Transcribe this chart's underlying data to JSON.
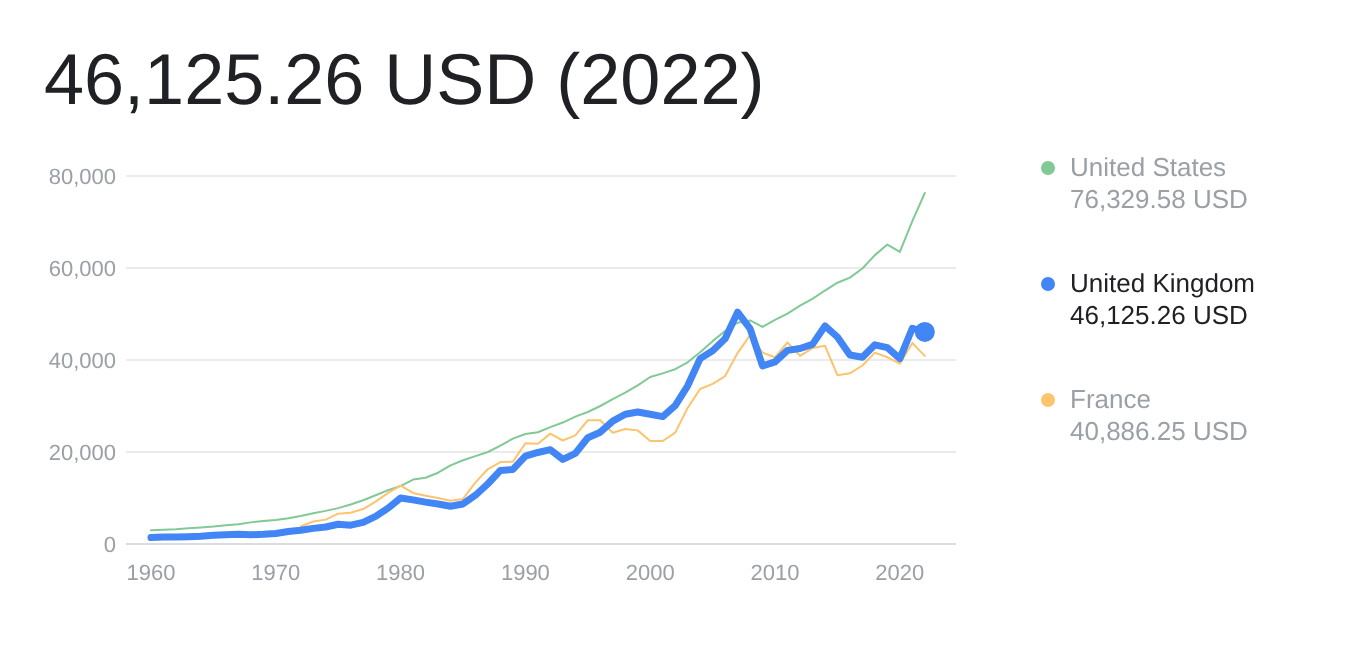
{
  "chart_data": {
    "type": "line",
    "title": "46,125.26 USD (2022)",
    "xlim": [
      1958,
      2024.5
    ],
    "xticks": [
      1960,
      1970,
      1980,
      1990,
      2000,
      2010,
      2020
    ],
    "ylim": [
      0,
      80000
    ],
    "yticks": [
      {
        "value": 0,
        "label": "0"
      },
      {
        "value": 20000,
        "label": "20,000"
      },
      {
        "value": 40000,
        "label": "40,000"
      },
      {
        "value": 60000,
        "label": "60,000"
      },
      {
        "value": 80000,
        "label": "80,000"
      }
    ],
    "grid": "y",
    "legend": "right",
    "x": [
      1960,
      1961,
      1962,
      1963,
      1964,
      1965,
      1966,
      1967,
      1968,
      1969,
      1970,
      1971,
      1972,
      1973,
      1974,
      1975,
      1976,
      1977,
      1978,
      1979,
      1980,
      1981,
      1982,
      1983,
      1984,
      1985,
      1986,
      1987,
      1988,
      1989,
      1990,
      1991,
      1992,
      1993,
      1994,
      1995,
      1996,
      1997,
      1998,
      1999,
      2000,
      2001,
      2002,
      2003,
      2004,
      2005,
      2006,
      2007,
      2008,
      2009,
      2010,
      2011,
      2012,
      2013,
      2014,
      2015,
      2016,
      2017,
      2018,
      2019,
      2020,
      2021,
      2022
    ],
    "series": [
      {
        "name": "United States",
        "color": "#81c995",
        "values": [
          3000,
          3100,
          3200,
          3400,
          3600,
          3800,
          4100,
          4300,
          4700,
          5000,
          5200,
          5600,
          6100,
          6700,
          7200,
          7800,
          8600,
          9500,
          10600,
          11700,
          12600,
          14000,
          14400,
          15500,
          17100,
          18200,
          19100,
          20000,
          21400,
          22900,
          23900,
          24300,
          25400,
          26400,
          27700,
          28700,
          30000,
          31500,
          32900,
          34500,
          36300,
          37100,
          38000,
          39500,
          41700,
          44100,
          46300,
          48100,
          48600,
          47200,
          48700,
          50100,
          51800,
          53300,
          55100,
          56800,
          57900,
          59900,
          62800,
          65100,
          63500,
          70200,
          76300
        ]
      },
      {
        "name": "United Kingdom",
        "color": "#4285f4",
        "values": [
          1400,
          1500,
          1500,
          1600,
          1700,
          1900,
          2000,
          2100,
          2000,
          2100,
          2300,
          2700,
          3000,
          3400,
          3700,
          4300,
          4100,
          4700,
          6000,
          7800,
          10000,
          9600,
          9100,
          8700,
          8200,
          8700,
          10600,
          13100,
          16000,
          16200,
          19100,
          19900,
          20500,
          18400,
          19700,
          23100,
          24300,
          26700,
          28200,
          28700,
          28200,
          27700,
          30100,
          34400,
          40300,
          42000,
          44600,
          50400,
          46800,
          38700,
          39600,
          42100,
          42500,
          43400,
          47400,
          45000,
          41100,
          40600,
          43300,
          42700,
          40300,
          46900,
          46100
        ]
      },
      {
        "name": "France",
        "color": "#fbc46e",
        "values": [
          null,
          null,
          null,
          null,
          null,
          null,
          null,
          null,
          null,
          null,
          null,
          null,
          3800,
          4900,
          5300,
          6600,
          6800,
          7600,
          9200,
          11100,
          12700,
          11100,
          10500,
          10000,
          9400,
          9800,
          13400,
          16300,
          17800,
          17900,
          21900,
          21800,
          24000,
          22500,
          23600,
          26900,
          26900,
          24200,
          25000,
          24700,
          22400,
          22400,
          24200,
          29600,
          33700,
          34800,
          36500,
          41500,
          45400,
          41600,
          40600,
          43800,
          40900,
          42600,
          43100,
          36700,
          37100,
          38800,
          41600,
          40600,
          39200,
          43700,
          40900
        ]
      },
      {
        "type": "scatter",
        "color": "#4285f4",
        "marker": "circle",
        "x": [
          2022
        ],
        "values": [
          46100
        ]
      }
    ],
    "annotations": [
      "76,329.58 USD",
      "46,125.26 USD",
      "40,886.25 USD"
    ]
  }
}
